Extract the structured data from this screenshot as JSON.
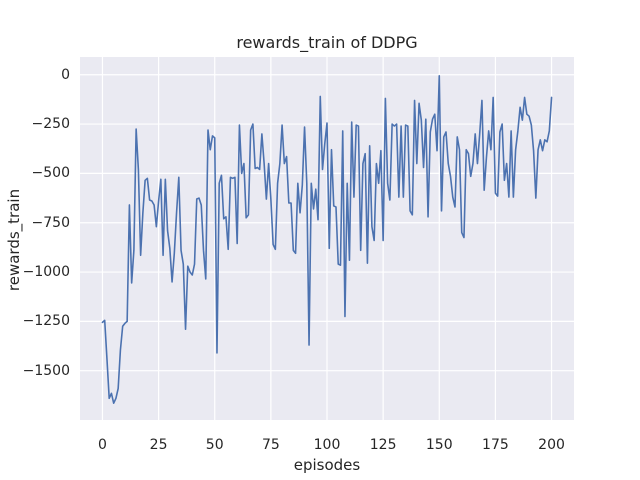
{
  "figure": {
    "title": "rewards_train of DDPG",
    "xlabel": "episodes",
    "ylabel": "rewards_train"
  },
  "chart_data": {
    "type": "line",
    "title": "rewards_train of DDPG",
    "xlabel": "episodes",
    "ylabel": "rewards_train",
    "xlim": [
      -10,
      210
    ],
    "ylim": [
      -1750,
      90
    ],
    "x_ticks": [
      0,
      25,
      50,
      75,
      100,
      125,
      150,
      175,
      200
    ],
    "x_tick_labels": [
      "0",
      "25",
      "50",
      "75",
      "100",
      "125",
      "150",
      "175",
      "200"
    ],
    "y_ticks": [
      0,
      -250,
      -500,
      -750,
      -1000,
      -1250,
      -1500
    ],
    "y_tick_labels": [
      "0",
      "−250",
      "−500",
      "−750",
      "−1000",
      "−1250",
      "−1500"
    ],
    "grid": true,
    "legend_position": "none",
    "style": {
      "panel_bg": "#eaeaf2",
      "grid_color": "#ffffff",
      "line_color": "#4c72b0",
      "text_color": "#262626",
      "line_width": 1.6
    },
    "series": [
      {
        "name": "rewards_train",
        "color": "#4c72b0",
        "x_start": 0,
        "x_step": 1,
        "values": [
          -1255,
          -1245,
          -1440,
          -1640,
          -1615,
          -1665,
          -1640,
          -1590,
          -1395,
          -1275,
          -1260,
          -1250,
          -660,
          -1055,
          -890,
          -275,
          -480,
          -915,
          -700,
          -535,
          -525,
          -635,
          -640,
          -660,
          -770,
          -640,
          -530,
          -915,
          -530,
          -790,
          -880,
          -1050,
          -905,
          -700,
          -520,
          -890,
          -960,
          -1290,
          -970,
          -1000,
          -1015,
          -960,
          -630,
          -625,
          -660,
          -890,
          -1035,
          -280,
          -380,
          -310,
          -320,
          -1410,
          -550,
          -510,
          -730,
          -720,
          -885,
          -520,
          -525,
          -520,
          -855,
          -255,
          -500,
          -450,
          -725,
          -710,
          -280,
          -250,
          -475,
          -470,
          -480,
          -300,
          -450,
          -630,
          -450,
          -630,
          -860,
          -885,
          -550,
          -450,
          -255,
          -450,
          -415,
          -650,
          -650,
          -890,
          -905,
          -550,
          -700,
          -560,
          -265,
          -550,
          -1370,
          -550,
          -680,
          -580,
          -735,
          -110,
          -480,
          -350,
          -245,
          -880,
          -380,
          -665,
          -670,
          -960,
          -965,
          -285,
          -1225,
          -550,
          -940,
          -240,
          -620,
          -255,
          -260,
          -890,
          -450,
          -400,
          -955,
          -360,
          -770,
          -840,
          -450,
          -550,
          -385,
          -840,
          -120,
          -550,
          -635,
          -250,
          -260,
          -250,
          -620,
          -260,
          -620,
          -255,
          -260,
          -690,
          -710,
          -130,
          -450,
          -145,
          -230,
          -470,
          -225,
          -720,
          -290,
          -225,
          -200,
          -385,
          -5,
          -690,
          -315,
          -290,
          -450,
          -515,
          -620,
          -670,
          -315,
          -380,
          -800,
          -825,
          -380,
          -400,
          -515,
          -450,
          -300,
          -450,
          -300,
          -130,
          -585,
          -420,
          -285,
          -380,
          -115,
          -600,
          -615,
          -290,
          -250,
          -535,
          -450,
          -620,
          -285,
          -620,
          -380,
          -285,
          -165,
          -230,
          -115,
          -200,
          -210,
          -255,
          -385,
          -625,
          -380,
          -330,
          -385,
          -330,
          -340,
          -285,
          -115
        ]
      }
    ]
  }
}
